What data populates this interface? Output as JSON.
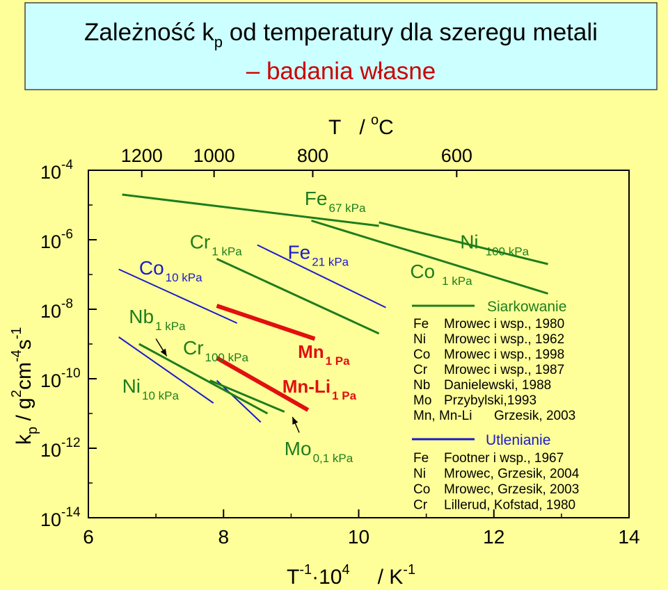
{
  "header": {
    "title_main": "Zależność k",
    "title_sub": "p",
    "title_rest": " od temperatury dla szeregu metali",
    "subtitle": "– badania własne",
    "bg_color": "#ccffff",
    "subtitle_color": "#cc0000"
  },
  "chart_data": {
    "type": "line",
    "x_axis": {
      "label": "T",
      "label_sup": "-1",
      "label_mid": "·10",
      "label_sup2": "4",
      "label_unit": "/ K",
      "label_unit_sup": "-1",
      "xlim": [
        6,
        14
      ],
      "ticks": [
        6,
        8,
        10,
        12,
        14
      ]
    },
    "y_axis": {
      "label": "k",
      "label_sub": "p",
      "label_unit": " / g",
      "label_unit_sup1": "2",
      "label_unit_mid": "cm",
      "label_unit_sup2": "-4",
      "label_unit_end": "s",
      "label_unit_sup3": "-1",
      "scale": "log",
      "ylim_exp": [
        -14,
        -4
      ],
      "ticks": [
        {
          "base": "10",
          "exp": "-4",
          "value": -4
        },
        {
          "base": "10",
          "exp": "-6",
          "value": -6
        },
        {
          "base": "10",
          "exp": "-8",
          "value": -8
        },
        {
          "base": "10",
          "exp": "-10",
          "value": -10
        },
        {
          "base": "10",
          "exp": "-12",
          "value": -12
        },
        {
          "base": "10",
          "exp": "-14",
          "value": -14
        }
      ]
    },
    "top_axis": {
      "label": "T",
      "label_unit": "/ ",
      "label_unit_sup": "o",
      "label_unit_end": "C",
      "ticks": [
        {
          "text": "1200",
          "x": 6.79
        },
        {
          "text": "1000",
          "x": 7.86
        },
        {
          "text": "800",
          "x": 9.32
        },
        {
          "text": "600",
          "x": 11.45
        }
      ]
    },
    "colors": {
      "green": "#1e7d1e",
      "blue": "#1a1acc",
      "red": "#e01010"
    },
    "series": [
      {
        "id": "fe67",
        "color": "green",
        "width": 3,
        "points": [
          [
            6.5,
            -4.7
          ],
          [
            10.3,
            -5.6
          ]
        ]
      },
      {
        "id": "ni100",
        "color": "green",
        "width": 3,
        "points": [
          [
            10.3,
            -5.5
          ],
          [
            12.8,
            -6.7
          ]
        ]
      },
      {
        "id": "fe-low",
        "color": "green",
        "width": 3,
        "points": [
          [
            9.3,
            -5.45
          ],
          [
            12.8,
            -7.55
          ]
        ]
      },
      {
        "id": "cr1",
        "color": "green",
        "width": 3,
        "points": [
          [
            7.9,
            -6.55
          ],
          [
            10.3,
            -8.7
          ]
        ]
      },
      {
        "id": "fe21",
        "color": "blue",
        "width": 2,
        "points": [
          [
            8.5,
            -6.15
          ],
          [
            10.4,
            -7.95
          ]
        ]
      },
      {
        "id": "co10",
        "color": "blue",
        "width": 2,
        "points": [
          [
            6.45,
            -6.85
          ],
          [
            8.2,
            -8.4
          ]
        ]
      },
      {
        "id": "cr100",
        "color": "blue",
        "width": 2,
        "points": [
          [
            7.9,
            -10.05
          ],
          [
            8.55,
            -11.25
          ]
        ]
      },
      {
        "id": "ni10",
        "color": "blue",
        "width": 2,
        "points": [
          [
            6.45,
            -8.8
          ],
          [
            7.85,
            -10.7
          ]
        ]
      },
      {
        "id": "nb1",
        "color": "green",
        "width": 3,
        "points": [
          [
            6.75,
            -9.0
          ],
          [
            8.65,
            -11.0
          ]
        ]
      },
      {
        "id": "mo01",
        "color": "green",
        "width": 3,
        "points": [
          [
            7.8,
            -10.05
          ],
          [
            8.9,
            -10.95
          ]
        ]
      },
      {
        "id": "mn1",
        "color": "red",
        "width": 6,
        "points": [
          [
            7.9,
            -7.9
          ],
          [
            9.35,
            -8.85
          ]
        ]
      },
      {
        "id": "mnli1",
        "color": "red",
        "width": 6,
        "points": [
          [
            7.9,
            -9.4
          ],
          [
            9.25,
            -10.9
          ]
        ]
      }
    ],
    "labels": [
      {
        "id": "fe67",
        "main": "Fe",
        "sub": "67 kPa",
        "color": "green",
        "x": 9.2,
        "y": -5.0,
        "size": 28,
        "sub_size": 17,
        "bold": false
      },
      {
        "id": "ni100",
        "main": "Ni",
        "sub": "100 kPa",
        "color": "green",
        "x": 11.5,
        "y": -6.25,
        "size": 28,
        "sub_size": 17,
        "bold": false,
        "sub_gap": 10
      },
      {
        "id": "co1",
        "main": "Co",
        "sub": "1 kPa",
        "color": "green",
        "x": 10.76,
        "y": -7.1,
        "size": 28,
        "sub_size": 17,
        "bold": false,
        "sub_gap": 10
      },
      {
        "id": "cr1",
        "main": "Cr",
        "sub": "1 kPa",
        "color": "green",
        "x": 7.5,
        "y": -6.25,
        "size": 28,
        "sub_size": 17,
        "bold": false
      },
      {
        "id": "fe21",
        "main": "Fe",
        "sub": "21 kPa",
        "color": "blue",
        "x": 8.95,
        "y": -6.55,
        "size": 28,
        "sub_size": 17,
        "bold": false
      },
      {
        "id": "co10",
        "main": "Co",
        "sub": "10 kPa",
        "color": "blue",
        "x": 6.75,
        "y": -7.0,
        "size": 28,
        "sub_size": 17,
        "bold": false
      },
      {
        "id": "nb1",
        "main": "Nb",
        "sub": "1 kPa",
        "color": "green",
        "x": 6.6,
        "y": -8.4,
        "size": 28,
        "sub_size": 17,
        "bold": false
      },
      {
        "id": "cr100",
        "main": "Cr",
        "sub": "100 kPa",
        "color": "green",
        "x": 7.4,
        "y": -9.3,
        "size": 28,
        "sub_size": 17,
        "bold": false
      },
      {
        "id": "ni10",
        "main": "Ni",
        "sub": "10 kPa",
        "color": "green",
        "x": 6.5,
        "y": -10.4,
        "size": 28,
        "sub_size": 17,
        "bold": false
      },
      {
        "id": "mn1",
        "main": "Mn",
        "sub": "1 Pa",
        "color": "red",
        "x": 9.1,
        "y": -9.4,
        "size": 26,
        "sub_size": 17,
        "bold": true
      },
      {
        "id": "mnli1",
        "main": "Mn-Li",
        "sub": "1 Pa",
        "color": "red",
        "x": 8.87,
        "y": -10.4,
        "size": 26,
        "sub_size": 17,
        "bold": true
      },
      {
        "id": "mo01",
        "main": "Mo",
        "sub": "0,1 kPa",
        "color": "green",
        "x": 8.9,
        "y": -12.2,
        "size": 28,
        "sub_size": 17,
        "bold": false
      }
    ],
    "arrows": [
      {
        "id": "nb-arrow",
        "from": [
          7.0,
          -8.85
        ],
        "to": [
          7.16,
          -9.35
        ]
      },
      {
        "id": "mo-arrow",
        "from": [
          9.12,
          -11.55
        ],
        "to": [
          9.02,
          -11.1
        ]
      }
    ],
    "legend": {
      "placement": "right",
      "green_heading": "Siarkowanie",
      "green_rows": [
        {
          "metal": "Fe",
          "ref": "Mrowec i wsp., 1980"
        },
        {
          "metal": "Ni",
          "ref": "Mrowec i wsp., 1962"
        },
        {
          "metal": "Co",
          "ref": "Mrowec i wsp., 1998"
        },
        {
          "metal": "Cr",
          "ref": "Mrowec i wsp., 1987"
        },
        {
          "metal": "Nb",
          "ref": "Danielewski, 1988"
        },
        {
          "metal": "Mo",
          "ref": "Przybylski,1993"
        },
        {
          "metal": "Mn, Mn-Li",
          "ref": "Grzesik, 2003"
        }
      ],
      "blue_heading": "Utlenianie",
      "blue_rows": [
        {
          "metal": "Fe",
          "ref": "Footner i wsp., 1967"
        },
        {
          "metal": "Ni",
          "ref": "Mrowec, Grzesik, 2004"
        },
        {
          "metal": "Co",
          "ref": "Mrowec, Grzesik, 2003"
        },
        {
          "metal": "Cr",
          "ref": "Lillerud, Kofstad, 1980"
        }
      ]
    }
  }
}
